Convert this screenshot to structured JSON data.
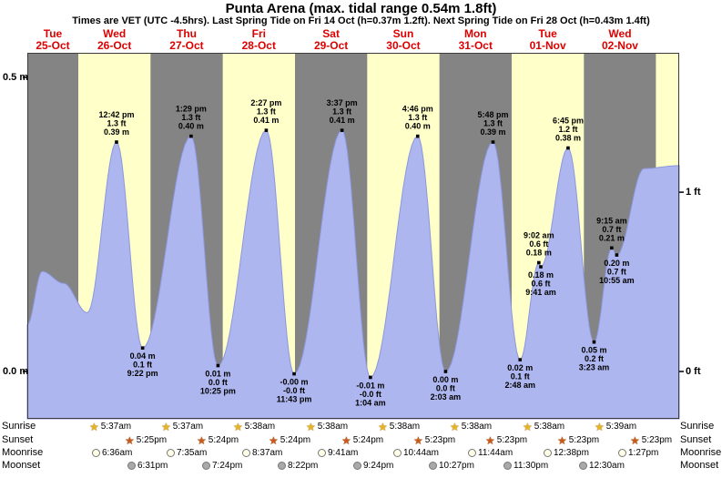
{
  "header": {
    "title": "Punta Arena (max. tidal range 0.54m 1.8ft)",
    "subtitle": "Times are VET (UTC -4.5hrs). Last Spring Tide on Fri 14 Oct (h=0.37m 1.2ft). Next Spring Tide on Fri 28 Oct (h=0.43m 1.4ft)"
  },
  "days": [
    {
      "name": "Tue",
      "date": "25-Oct"
    },
    {
      "name": "Wed",
      "date": "26-Oct"
    },
    {
      "name": "Thu",
      "date": "27-Oct"
    },
    {
      "name": "Fri",
      "date": "28-Oct"
    },
    {
      "name": "Sat",
      "date": "29-Oct"
    },
    {
      "name": "Sun",
      "date": "30-Oct"
    },
    {
      "name": "Mon",
      "date": "31-Oct"
    },
    {
      "name": "Tue",
      "date": "01-Nov"
    },
    {
      "name": "Wed",
      "date": "02-Nov"
    }
  ],
  "chart_data": {
    "type": "area",
    "title": "Punta Arena tide height curve",
    "x_range": [
      "Tue 25-Oct",
      "Wed 02-Nov"
    ],
    "ylim_m": [
      -0.08,
      0.54
    ],
    "yticks_left": [
      {
        "label": "0.5 m",
        "m": 0.5
      },
      {
        "label": "0.0 m",
        "m": 0.0
      }
    ],
    "yticks_right": [
      {
        "label": "1 ft",
        "m": 0.3048
      },
      {
        "label": "0 ft",
        "m": 0.0
      }
    ],
    "points": [
      {
        "day": 0,
        "hour": 0.0,
        "m": 0.08
      },
      {
        "day": 0,
        "hour": 7.0,
        "m": 0.17
      },
      {
        "day": 0,
        "hour": 17.0,
        "m": 0.15
      },
      {
        "day": 1,
        "hour": 3.0,
        "m": 0.1
      },
      {
        "day": 1,
        "hour": 12.7,
        "m": 0.39,
        "ann": "high",
        "lines": [
          "12:42 pm",
          "1.3 ft",
          "0.39 m"
        ]
      },
      {
        "day": 1,
        "hour": 21.37,
        "m": 0.04,
        "ann": "low",
        "lines": [
          "0.04 m",
          "0.1 ft",
          "9:22 pm"
        ]
      },
      {
        "day": 2,
        "hour": 13.48,
        "m": 0.4,
        "ann": "high",
        "lines": [
          "1:29 pm",
          "1.3 ft",
          "0.40 m"
        ]
      },
      {
        "day": 2,
        "hour": 22.42,
        "m": 0.01,
        "ann": "low",
        "lines": [
          "0.01 m",
          "0.0 ft",
          "10:25 pm"
        ]
      },
      {
        "day": 3,
        "hour": 14.45,
        "m": 0.41,
        "ann": "high",
        "lines": [
          "2:27 pm",
          "1.3 ft",
          "0.41 m"
        ]
      },
      {
        "day": 3,
        "hour": 23.72,
        "m": -0.004,
        "ann": "low",
        "lines": [
          "-0.00 m",
          "-0.0 ft",
          "11:43 pm"
        ]
      },
      {
        "day": 4,
        "hour": 15.62,
        "m": 0.41,
        "ann": "high",
        "lines": [
          "3:37 pm",
          "1.3 ft",
          "0.41 m"
        ]
      },
      {
        "day": 5,
        "hour": 1.07,
        "m": -0.01,
        "ann": "low",
        "lines": [
          "-0.01 m",
          "-0.0 ft",
          "1:04 am"
        ]
      },
      {
        "day": 5,
        "hour": 16.77,
        "m": 0.4,
        "ann": "high",
        "lines": [
          "4:46 pm",
          "1.3 ft",
          "0.40 m"
        ]
      },
      {
        "day": 6,
        "hour": 2.05,
        "m": 0.0,
        "ann": "low",
        "lines": [
          "0.00 m",
          "0.0 ft",
          "2:03 am"
        ]
      },
      {
        "day": 6,
        "hour": 17.8,
        "m": 0.39,
        "ann": "high",
        "lines": [
          "5:48 pm",
          "1.3 ft",
          "0.39 m"
        ]
      },
      {
        "day": 7,
        "hour": 2.8,
        "m": 0.02,
        "ann": "low",
        "lines": [
          "0.02 m",
          "0.1 ft",
          "2:48 am"
        ]
      },
      {
        "day": 7,
        "hour": 9.03,
        "m": 0.185,
        "ann": "high",
        "lines": [
          "9:02 am",
          "0.6 ft",
          "0.18 m"
        ]
      },
      {
        "day": 7,
        "hour": 9.68,
        "m": 0.178,
        "ann": "low",
        "lines": [
          "0.18 m",
          "0.6 ft",
          "9:41 am"
        ]
      },
      {
        "day": 7,
        "hour": 18.75,
        "m": 0.38,
        "ann": "high",
        "lines": [
          "6:45 pm",
          "1.2 ft",
          "0.38 m"
        ]
      },
      {
        "day": 8,
        "hour": 3.38,
        "m": 0.05,
        "ann": "low",
        "lines": [
          "0.05 m",
          "0.2 ft",
          "3:23 am"
        ]
      },
      {
        "day": 8,
        "hour": 9.25,
        "m": 0.21,
        "ann": "high",
        "lines": [
          "9:15 am",
          "0.7 ft",
          "0.21 m"
        ]
      },
      {
        "day": 8,
        "hour": 10.92,
        "m": 0.198,
        "ann": "low",
        "lines": [
          "0.20 m",
          "0.7 ft",
          "10:55 am"
        ]
      },
      {
        "day": 8,
        "hour": 20.0,
        "m": 0.345
      },
      {
        "day": 9,
        "hour": 24.0,
        "m": 0.35
      }
    ]
  },
  "astro": {
    "row_labels": [
      "Sunrise",
      "Sunset",
      "Moonrise",
      "Moonset"
    ],
    "sunrise": [
      {
        "day": 1,
        "time": "5:37am"
      },
      {
        "day": 2,
        "time": "5:37am"
      },
      {
        "day": 3,
        "time": "5:38am"
      },
      {
        "day": 4,
        "time": "5:38am"
      },
      {
        "day": 5,
        "time": "5:38am"
      },
      {
        "day": 6,
        "time": "5:38am"
      },
      {
        "day": 7,
        "time": "5:38am"
      },
      {
        "day": 8,
        "time": "5:39am"
      }
    ],
    "sunset": [
      {
        "day": 1,
        "time": "5:25pm"
      },
      {
        "day": 2,
        "time": "5:24pm"
      },
      {
        "day": 3,
        "time": "5:24pm"
      },
      {
        "day": 4,
        "time": "5:24pm"
      },
      {
        "day": 5,
        "time": "5:23pm"
      },
      {
        "day": 6,
        "time": "5:23pm"
      },
      {
        "day": 7,
        "time": "5:23pm"
      },
      {
        "day": 8,
        "time": "5:23pm"
      }
    ],
    "moonrise": [
      {
        "day": 1,
        "time": "6:36am"
      },
      {
        "day": 2,
        "time": "7:35am"
      },
      {
        "day": 3,
        "time": "8:37am"
      },
      {
        "day": 4,
        "time": "9:41am"
      },
      {
        "day": 5,
        "time": "10:44am"
      },
      {
        "day": 6,
        "time": "11:44am"
      },
      {
        "day": 7,
        "time": "12:38pm"
      },
      {
        "day": 8,
        "time": "1:27pm"
      }
    ],
    "moonset": [
      {
        "day": 1,
        "time": "6:31pm"
      },
      {
        "day": 2,
        "time": "7:24pm"
      },
      {
        "day": 3,
        "time": "8:22pm"
      },
      {
        "day": 4,
        "time": "9:24pm"
      },
      {
        "day": 5,
        "time": "10:27pm"
      },
      {
        "day": 6,
        "time": "11:30pm"
      },
      {
        "day": 8,
        "time": "12:30am"
      }
    ]
  },
  "colors": {
    "day_label": "#dd0000",
    "plot_gray": "#848484",
    "band_yellow": "#ffffc9",
    "water": "#adb6ef",
    "water_edge": "#8d97dd",
    "sunrise_star": "#e8b422",
    "sunset_star": "#c85a1e",
    "moonrise_fill": "#ffffe6",
    "moonset_fill": "#a9a9a9"
  }
}
